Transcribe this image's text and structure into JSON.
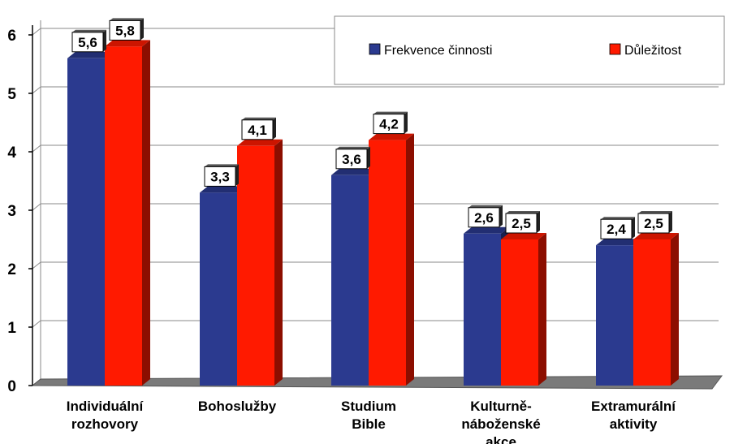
{
  "chart_data": {
    "type": "bar",
    "categories": [
      [
        "Individuální",
        "rozhovory"
      ],
      [
        "Bohoslužby"
      ],
      [
        "Studium",
        "Bible"
      ],
      [
        "Kulturně-",
        "náboženské",
        "akce"
      ],
      [
        "Extramurální",
        "aktivity"
      ]
    ],
    "series": [
      {
        "name": "Frekvence činnosti",
        "values": [
          5.6,
          3.3,
          3.6,
          2.6,
          2.4
        ],
        "labels": [
          "5,6",
          "3,3",
          "3,6",
          "2,6",
          "2,4"
        ],
        "color": "#2b3a8f"
      },
      {
        "name": "Důležitost",
        "values": [
          5.8,
          4.1,
          4.2,
          2.5,
          2.5
        ],
        "labels": [
          "5,8",
          "4,1",
          "4,2",
          "2,5",
          "2,5"
        ],
        "color": "#ff1a00"
      }
    ],
    "yticks": [
      "0",
      "1",
      "2",
      "3",
      "4",
      "5",
      "6"
    ],
    "ylim": [
      0,
      6
    ],
    "grid": true,
    "legend": "top-right",
    "style": "3d"
  }
}
